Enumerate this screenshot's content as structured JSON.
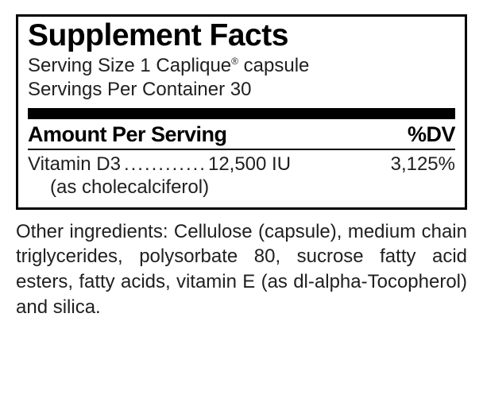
{
  "panel": {
    "title": "Supplement Facts",
    "servingSizePrefix": "Serving Size 1 Caplique",
    "servingSizeSuffix": " capsule",
    "servingsPerContainer": "Servings Per Container 30",
    "amountHeader": "Amount Per Serving",
    "dvHeader": "%DV",
    "nutrient": {
      "name": "Vitamin D3",
      "dots": "............",
      "amount": "12,500 IU",
      "dv": "3,125%",
      "sub": "(as cholecalciferol)"
    }
  },
  "otherIngredients": "Other ingredients: Cellulose (capsule), medium chain triglycerides, polysorbate 80, sucrose fatty acid esters, fatty acids, vitamin E (as dl-alpha-Tocopherol) and silica.",
  "style": {
    "borderColor": "#000000",
    "textColor": "#202020",
    "titleColor": "#000000",
    "background": "#ffffff",
    "titleFontSize": 39,
    "bodyFontSize": 24,
    "headerFontSize": 27,
    "thickBarHeight": 14
  }
}
